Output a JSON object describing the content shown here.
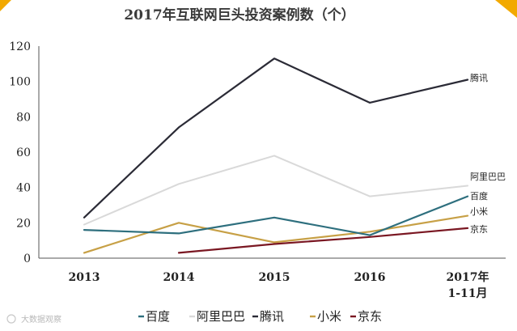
{
  "chart_data": {
    "type": "line",
    "title": "2017年互联网巨头投资案例数（个）",
    "categories": [
      "2013",
      "2014",
      "2015",
      "2016",
      "2017年\n1-11月"
    ],
    "ylim": [
      0,
      120
    ],
    "yticks": [
      0,
      20,
      40,
      60,
      80,
      100,
      120
    ],
    "grid": false,
    "legend_position": "bottom",
    "series": [
      {
        "name": "百度",
        "color": "#2e6f7e",
        "values": [
          16,
          14,
          23,
          13,
          35
        ]
      },
      {
        "name": "阿里巴巴",
        "color": "#d9d9d9",
        "values": [
          19,
          42,
          58,
          35,
          41
        ]
      },
      {
        "name": "腾讯",
        "color": "#2b2b36",
        "values": [
          23,
          74,
          113,
          88,
          101
        ]
      },
      {
        "name": "小米",
        "color": "#c7a046",
        "values": [
          3,
          20,
          9,
          15,
          24
        ]
      },
      {
        "name": "京东",
        "color": "#7a1722",
        "values": [
          null,
          3,
          8,
          12,
          17
        ]
      }
    ]
  },
  "watermark": "大数据观察",
  "accent_color": "#f2a900"
}
